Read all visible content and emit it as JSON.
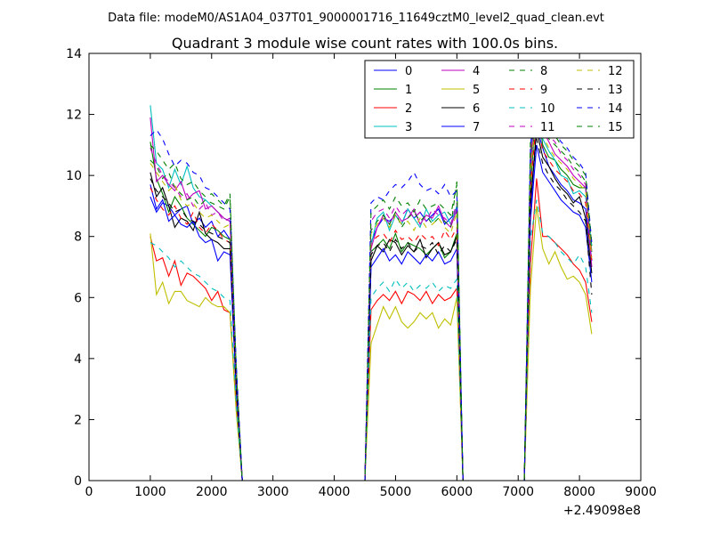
{
  "suptitle": "Data file: modeM0/AS1A04_037T01_9000001716_11649cztM0_level2_quad_clean.evt",
  "chart_data": {
    "type": "line",
    "title": "Quadrant 3 module wise count rates with 100.0s bins.",
    "xlabel": "",
    "ylabel": "",
    "offset_label": "+2.49098e8",
    "xlim": [
      0,
      9000
    ],
    "ylim": [
      0,
      14
    ],
    "xticks": [
      "0",
      "1000",
      "2000",
      "3000",
      "4000",
      "5000",
      "6000",
      "7000",
      "8000",
      "9000"
    ],
    "yticks": [
      "0",
      "2",
      "4",
      "6",
      "8",
      "10",
      "12",
      "14"
    ],
    "grid": false,
    "legend_position": "top-right",
    "x": [
      1000,
      1100,
      1200,
      1300,
      1400,
      1500,
      1600,
      1700,
      1800,
      1900,
      2000,
      2100,
      2200,
      2300,
      2400,
      2500,
      2600,
      4500,
      4600,
      4700,
      4800,
      4900,
      5000,
      5100,
      5200,
      5300,
      5400,
      5500,
      5600,
      5700,
      5800,
      5900,
      6000,
      6100,
      6200,
      7100,
      7200,
      7300,
      7400,
      7500,
      7600,
      7700,
      7800,
      7900,
      8000,
      8100,
      8200
    ],
    "series": [
      {
        "name": "0",
        "color": "#0000ff",
        "dash": "solid",
        "values": [
          9.3,
          8.8,
          9.1,
          9.0,
          8.7,
          8.9,
          9.0,
          8.4,
          8.6,
          8.3,
          8.5,
          8.0,
          8.2,
          7.9,
          3.5,
          0,
          0,
          0,
          7.8,
          8.3,
          8.6,
          8.5,
          8.7,
          8.4,
          8.9,
          8.6,
          8.8,
          8.5,
          8.7,
          8.9,
          8.4,
          8.6,
          8.8,
          0,
          0,
          0,
          8.8,
          11.6,
          10.9,
          10.3,
          10.0,
          9.7,
          9.5,
          9.2,
          9.1,
          8.9,
          7.2
        ]
      },
      {
        "name": "1",
        "color": "#008000",
        "dash": "solid",
        "values": [
          11.1,
          9.9,
          9.4,
          8.8,
          9.3,
          9.0,
          8.6,
          8.4,
          8.2,
          8.0,
          8.3,
          8.2,
          8.0,
          7.9,
          3.2,
          0,
          0,
          0,
          7.5,
          7.7,
          7.9,
          7.6,
          8.1,
          7.5,
          7.8,
          7.7,
          7.6,
          7.4,
          7.6,
          7.8,
          7.3,
          7.5,
          8.1,
          0,
          0,
          0,
          9.6,
          12.5,
          11.0,
          10.6,
          10.5,
          10.2,
          10.0,
          9.7,
          9.6,
          9.6,
          7.5
        ]
      },
      {
        "name": "2",
        "color": "#ff0000",
        "dash": "solid",
        "values": [
          8.0,
          7.2,
          7.3,
          6.7,
          7.2,
          6.4,
          6.8,
          6.7,
          6.5,
          6.3,
          5.9,
          6.2,
          5.6,
          5.5,
          2.5,
          0,
          0,
          0,
          5.6,
          5.9,
          6.1,
          5.9,
          6.2,
          5.8,
          6.2,
          6.1,
          5.9,
          6.2,
          5.8,
          6.1,
          5.9,
          6.0,
          6.3,
          0,
          0,
          0,
          7.1,
          9.9,
          8.0,
          8.0,
          7.8,
          7.6,
          7.4,
          7.1,
          6.9,
          6.5,
          5.2
        ]
      },
      {
        "name": "3",
        "color": "#00bfbf",
        "dash": "solid",
        "values": [
          12.3,
          10.4,
          10.2,
          9.6,
          10.2,
          9.7,
          10.3,
          9.6,
          9.3,
          9.2,
          9.0,
          8.8,
          8.6,
          8.5,
          3.6,
          0,
          0,
          0,
          7.7,
          8.6,
          8.8,
          8.2,
          8.7,
          8.4,
          8.9,
          8.6,
          8.3,
          8.9,
          8.5,
          8.7,
          8.8,
          8.4,
          9.0,
          0,
          0,
          0,
          10.4,
          13.6,
          11.2,
          10.8,
          10.5,
          10.0,
          9.9,
          9.4,
          9.5,
          9.3,
          7.7
        ]
      },
      {
        "name": "4",
        "color": "#bf00bf",
        "dash": "solid",
        "values": [
          11.9,
          9.8,
          10.0,
          9.7,
          9.5,
          9.8,
          9.2,
          9.4,
          9.5,
          8.9,
          9.0,
          8.8,
          8.6,
          8.5,
          3.4,
          0,
          0,
          0,
          7.6,
          8.3,
          8.7,
          8.4,
          8.8,
          8.5,
          8.6,
          8.9,
          8.4,
          8.7,
          8.6,
          9.0,
          8.5,
          8.3,
          8.9,
          0,
          0,
          0,
          10.2,
          13.0,
          11.5,
          11.1,
          10.7,
          10.5,
          10.3,
          10.0,
          9.8,
          9.6,
          7.0
        ]
      },
      {
        "name": "5",
        "color": "#bfbf00",
        "dash": "solid",
        "values": [
          8.1,
          6.1,
          6.5,
          5.8,
          6.2,
          6.2,
          5.9,
          5.8,
          5.7,
          6.0,
          5.8,
          5.7,
          5.7,
          5.5,
          2.3,
          0,
          0,
          0,
          4.5,
          5.1,
          5.7,
          5.3,
          5.7,
          5.2,
          5.0,
          5.2,
          5.5,
          5.3,
          5.5,
          5.0,
          5.3,
          5.1,
          6.0,
          0,
          0,
          0,
          6.3,
          9.0,
          7.6,
          7.1,
          7.5,
          7.0,
          6.6,
          6.7,
          6.5,
          6.1,
          4.8
        ]
      },
      {
        "name": "6",
        "color": "#000000",
        "dash": "solid",
        "values": [
          10.1,
          9.3,
          9.6,
          9.0,
          8.3,
          8.6,
          8.5,
          8.2,
          8.8,
          8.1,
          7.9,
          7.8,
          7.6,
          7.6,
          3.0,
          0,
          0,
          0,
          7.2,
          7.7,
          7.5,
          7.9,
          7.8,
          7.4,
          7.7,
          7.5,
          7.9,
          7.3,
          7.6,
          7.8,
          7.4,
          7.5,
          8.0,
          0,
          0,
          0,
          9.1,
          11.5,
          10.6,
          10.3,
          9.9,
          9.6,
          9.4,
          9.1,
          9.3,
          8.6,
          6.8
        ]
      },
      {
        "name": "7",
        "color": "#0000ff",
        "dash": "solid",
        "values": [
          9.7,
          8.9,
          9.2,
          8.5,
          8.7,
          8.4,
          8.3,
          8.5,
          8.0,
          7.8,
          7.9,
          7.2,
          7.5,
          7.4,
          3.1,
          0,
          0,
          0,
          7.0,
          7.3,
          7.6,
          7.2,
          7.4,
          7.1,
          7.5,
          7.3,
          7.1,
          7.4,
          7.2,
          7.5,
          7.1,
          7.2,
          7.6,
          0,
          0,
          0,
          8.5,
          11.0,
          10.1,
          9.8,
          9.5,
          9.2,
          9.0,
          8.8,
          8.7,
          8.3,
          6.5
        ]
      },
      {
        "name": "8",
        "color": "#008000",
        "dash": "dashed",
        "values": [
          10.5,
          10.3,
          9.9,
          10.1,
          9.6,
          9.4,
          9.2,
          9.3,
          9.0,
          9.2,
          9.1,
          9.0,
          8.9,
          9.3,
          3.8,
          0,
          0,
          0,
          8.2,
          8.5,
          8.7,
          8.4,
          8.8,
          8.3,
          8.6,
          8.8,
          8.5,
          8.7,
          8.4,
          8.6,
          8.5,
          8.3,
          9.8,
          0,
          0,
          0,
          10.6,
          12.8,
          11.6,
          11.2,
          11.0,
          10.8,
          10.6,
          10.3,
          10.1,
          9.8,
          7.6
        ]
      },
      {
        "name": "9",
        "color": "#ff0000",
        "dash": "dashed",
        "values": [
          9.6,
          9.2,
          8.9,
          8.7,
          9.0,
          8.6,
          8.4,
          8.8,
          8.3,
          8.1,
          8.4,
          8.2,
          7.9,
          7.8,
          3.3,
          0,
          0,
          0,
          7.8,
          8.0,
          8.1,
          7.8,
          8.2,
          7.9,
          8.0,
          7.8,
          8.1,
          7.9,
          8.0,
          7.7,
          8.2,
          7.9,
          8.3,
          0,
          0,
          0,
          9.6,
          11.9,
          10.8,
          10.5,
          10.2,
          10.0,
          9.8,
          9.5,
          9.4,
          9.1,
          7.2
        ]
      },
      {
        "name": "10",
        "color": "#00bfbf",
        "dash": "dashed",
        "values": [
          7.8,
          7.7,
          7.5,
          7.3,
          7.0,
          7.2,
          7.0,
          6.8,
          6.7,
          6.5,
          6.3,
          6.2,
          6.0,
          5.9,
          2.6,
          0,
          0,
          0,
          6.0,
          6.3,
          6.5,
          6.2,
          6.6,
          6.3,
          6.5,
          6.2,
          6.4,
          6.3,
          6.5,
          6.2,
          6.4,
          6.3,
          6.6,
          0,
          0,
          0,
          7.9,
          9.2,
          8.1,
          8.0,
          7.8,
          7.5,
          7.3,
          7.1,
          7.4,
          7.0,
          5.5
        ]
      },
      {
        "name": "11",
        "color": "#bf00bf",
        "dash": "dashed",
        "values": [
          10.9,
          10.4,
          10.0,
          9.8,
          9.6,
          9.3,
          9.4,
          9.0,
          8.9,
          9.1,
          8.7,
          8.8,
          8.5,
          8.6,
          3.6,
          0,
          0,
          0,
          8.5,
          8.8,
          8.9,
          8.6,
          9.0,
          8.7,
          8.9,
          8.6,
          8.8,
          8.5,
          8.9,
          8.7,
          8.6,
          8.4,
          9.1,
          0,
          0,
          0,
          10.8,
          12.9,
          11.8,
          11.3,
          11.1,
          10.7,
          10.5,
          10.2,
          10.0,
          9.7,
          7.4
        ]
      },
      {
        "name": "12",
        "color": "#bfbf00",
        "dash": "dashed",
        "values": [
          10.4,
          10.1,
          9.8,
          9.5,
          9.7,
          9.2,
          9.0,
          9.1,
          8.8,
          8.6,
          8.7,
          8.5,
          8.3,
          8.4,
          3.5,
          0,
          0,
          0,
          8.1,
          8.4,
          8.6,
          8.3,
          8.7,
          8.4,
          8.5,
          8.2,
          8.6,
          8.3,
          8.4,
          8.6,
          8.3,
          8.1,
          8.8,
          0,
          0,
          0,
          10.1,
          12.2,
          11.3,
          10.9,
          10.6,
          10.4,
          10.2,
          9.9,
          9.7,
          9.5,
          7.3
        ]
      },
      {
        "name": "13",
        "color": "#000000",
        "dash": "dashed",
        "values": [
          9.9,
          9.5,
          9.3,
          9.1,
          8.8,
          8.9,
          8.6,
          8.5,
          8.4,
          8.2,
          8.1,
          8.0,
          7.9,
          7.8,
          3.2,
          0,
          0,
          0,
          7.4,
          7.7,
          7.8,
          7.5,
          7.9,
          7.6,
          7.8,
          7.5,
          7.7,
          7.6,
          7.8,
          7.4,
          7.7,
          7.5,
          7.9,
          0,
          0,
          0,
          9.3,
          11.2,
          10.4,
          10.0,
          9.7,
          9.5,
          9.2,
          9.0,
          8.8,
          8.5,
          6.1
        ]
      },
      {
        "name": "14",
        "color": "#0000ff",
        "dash": "dashed",
        "values": [
          11.3,
          11.5,
          11.2,
          10.7,
          10.3,
          10.5,
          10.4,
          10.1,
          10.0,
          9.6,
          9.5,
          9.3,
          9.1,
          8.9,
          3.9,
          0,
          0,
          0,
          9.1,
          9.3,
          9.2,
          9.5,
          9.7,
          9.6,
          9.8,
          10.1,
          9.7,
          9.5,
          9.6,
          9.4,
          9.7,
          9.3,
          9.5,
          0,
          0,
          0,
          10.9,
          13.3,
          12.1,
          11.7,
          11.4,
          11.1,
          10.9,
          10.6,
          10.4,
          10.1,
          7.8
        ]
      },
      {
        "name": "15",
        "color": "#008000",
        "dash": "dashed",
        "values": [
          11.0,
          10.8,
          10.5,
          10.2,
          10.4,
          9.9,
          9.7,
          9.8,
          9.5,
          9.3,
          9.4,
          9.2,
          9.0,
          9.4,
          3.7,
          0,
          0,
          0,
          8.8,
          9.0,
          9.2,
          8.9,
          9.3,
          9.0,
          9.1,
          8.8,
          9.2,
          8.9,
          9.0,
          9.1,
          8.9,
          8.7,
          9.7,
          0,
          0,
          0,
          11.2,
          13.1,
          12.0,
          11.6,
          11.3,
          11.0,
          10.8,
          10.5,
          10.3,
          10.0,
          7.7
        ]
      }
    ]
  }
}
